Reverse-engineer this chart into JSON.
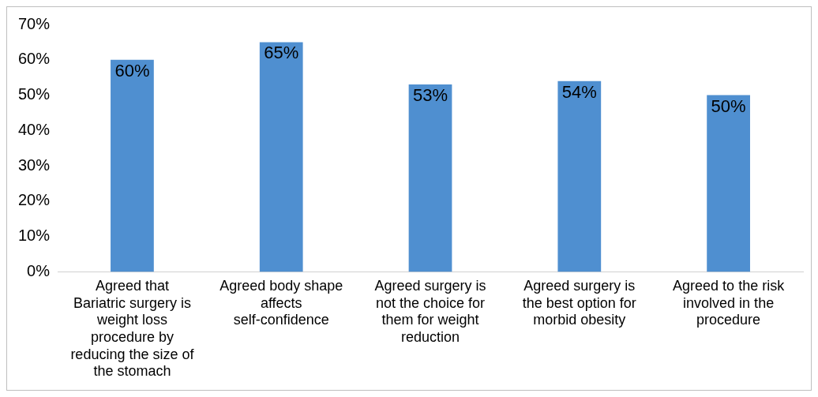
{
  "chart_data": {
    "type": "bar",
    "categories": [
      "Agreed that Bariatric surgery is weight loss procedure by reducing the size of the stomach",
      "Agreed body shape affects self-confidence",
      "Agreed surgery is not the choice for them for weight reduction",
      "Agreed surgery is the best option for morbid obesity",
      "Agreed to the risk involved in the procedure"
    ],
    "values": [
      60,
      65,
      53,
      54,
      50
    ],
    "value_labels": [
      "60%",
      "65%",
      "53%",
      "54%",
      "50%"
    ],
    "color": "#4f8fd0",
    "ylim": [
      0,
      70
    ],
    "yticks": [
      {
        "value": 0,
        "label": "0%"
      },
      {
        "value": 10,
        "label": "10%"
      },
      {
        "value": 20,
        "label": "20%"
      },
      {
        "value": 30,
        "label": "30%"
      },
      {
        "value": 40,
        "label": "40%"
      },
      {
        "value": 50,
        "label": "50%"
      },
      {
        "value": 60,
        "label": "60%"
      },
      {
        "value": 70,
        "label": "70%"
      }
    ],
    "grid": false,
    "legend": false
  }
}
